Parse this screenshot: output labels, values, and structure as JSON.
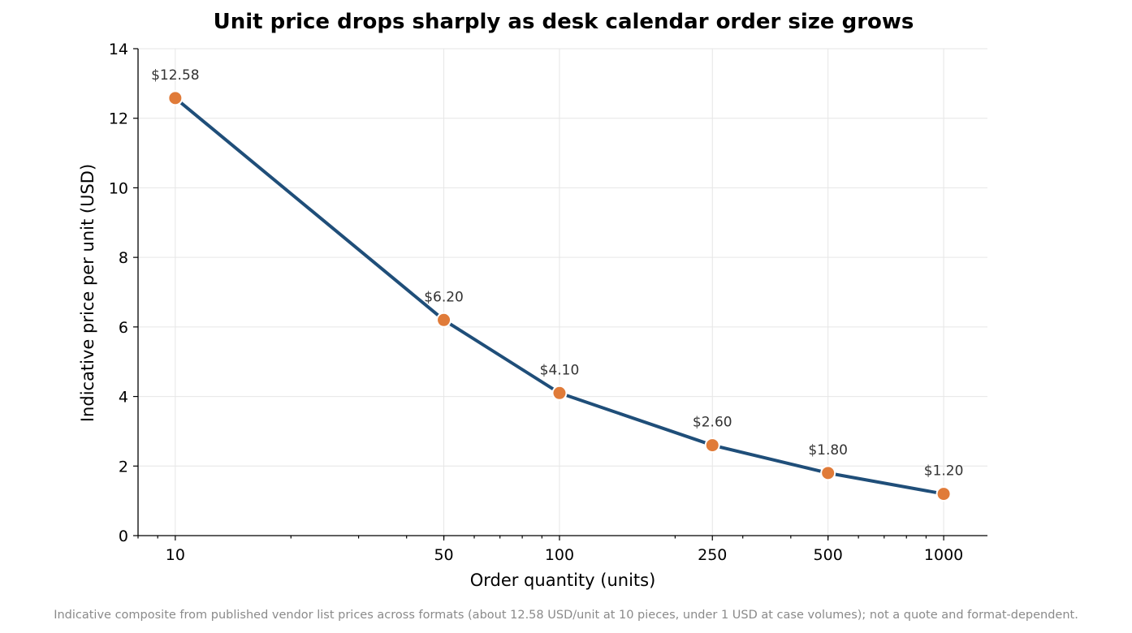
{
  "chart_data": {
    "type": "line",
    "title": "Unit price drops sharply as desk calendar order size grows",
    "xlabel": "Order quantity (units)",
    "ylabel": "Indicative price per unit (USD)",
    "x_scale": "log",
    "xlim": [
      8,
      1300
    ],
    "ylim": [
      0,
      14
    ],
    "x_ticks": [
      10,
      50,
      100,
      250,
      500,
      1000
    ],
    "x_tick_labels": [
      "10",
      "50",
      "100",
      "250",
      "500",
      "1000"
    ],
    "y_ticks": [
      0,
      2,
      4,
      6,
      8,
      10,
      12,
      14
    ],
    "y_tick_labels": [
      "0",
      "2",
      "4",
      "6",
      "8",
      "10",
      "12",
      "14"
    ],
    "grid": true,
    "line_color": "#1f4e79",
    "marker_color": "#e07b39",
    "x": [
      10,
      50,
      100,
      250,
      500,
      1000
    ],
    "y": [
      12.58,
      6.2,
      4.1,
      2.6,
      1.8,
      1.2
    ],
    "data_labels": [
      "$12.58",
      "$6.20",
      "$4.10",
      "$2.60",
      "$1.80",
      "$1.20"
    ]
  },
  "footnote": "Indicative composite from published vendor list prices across formats (about 12.58 USD/unit at 10 pieces, under 1 USD at case volumes); not a quote and format-dependent."
}
